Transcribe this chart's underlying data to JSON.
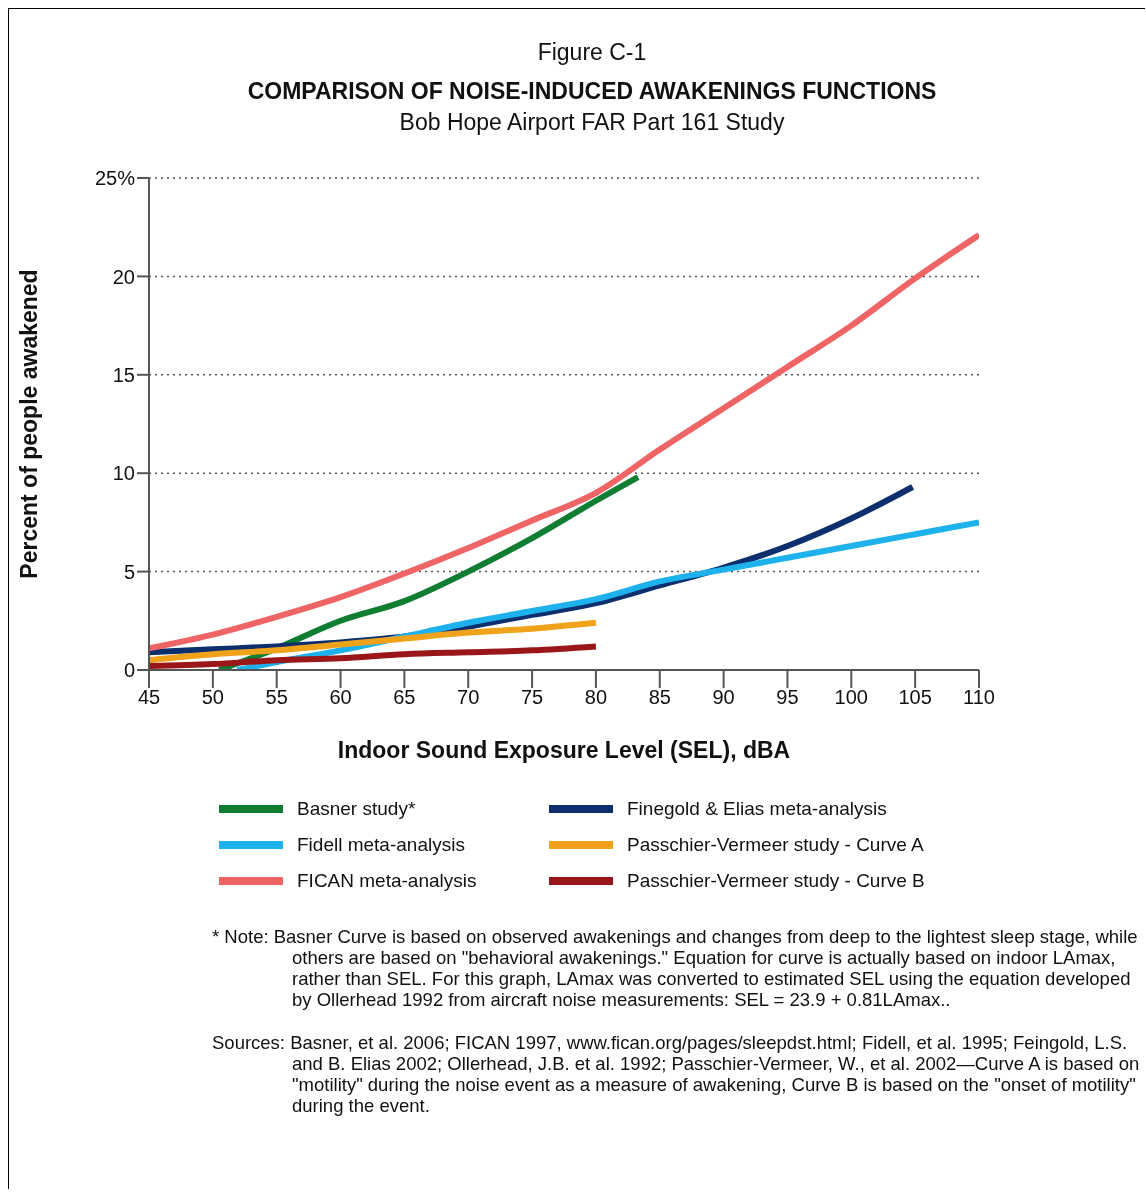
{
  "chart_data": {
    "type": "line",
    "title": "COMPARISON OF NOISE-INDUCED AWAKENINGS FUNCTIONS",
    "subtitle": "Bob Hope Airport FAR Part 161 Study",
    "xlabel": "Indoor Sound Exposure Level (SEL), dBA",
    "ylabel": "Percent of people awakened",
    "xlim": [
      45,
      110
    ],
    "xticks": [
      45,
      50,
      55,
      60,
      65,
      70,
      75,
      80,
      85,
      90,
      95,
      100,
      105,
      110
    ],
    "ylim": [
      0,
      25
    ],
    "yticks": [
      0,
      5,
      10,
      15,
      20,
      {
        "value": 25,
        "label": "25%"
      }
    ],
    "grid": "y",
    "legend": "bottom",
    "marker": "none",
    "line_style": "solid",
    "series": [
      {
        "name": "Basner study*",
        "color": "#0f7d32",
        "x": [
          50.5,
          55,
          60,
          65,
          70,
          75,
          80,
          83.3
        ],
        "values": [
          0,
          1.1,
          2.5,
          3.5,
          5.0,
          6.7,
          8.6,
          9.8
        ]
      },
      {
        "name": "Finegold & Elias meta-analysis",
        "color": "#0d2f6e",
        "x": [
          45,
          50,
          55,
          60,
          65,
          70,
          75,
          80,
          85,
          90,
          95,
          100,
          104.8
        ],
        "values": [
          0.9,
          1.05,
          1.2,
          1.4,
          1.7,
          2.2,
          2.8,
          3.4,
          4.3,
          5.2,
          6.3,
          7.7,
          9.3
        ]
      },
      {
        "name": "Fidell meta-analysis",
        "color": "#1eb2ec",
        "x": [
          51.9,
          55,
          60,
          65,
          70,
          75,
          80,
          85,
          90,
          95,
          100,
          105,
          110
        ],
        "values": [
          0,
          0.4,
          1.0,
          1.7,
          2.4,
          3.0,
          3.6,
          4.5,
          5.1,
          5.7,
          6.3,
          6.9,
          7.5
        ]
      },
      {
        "name": "Passchier-Vermeer study - Curve A",
        "color": "#f0a31a",
        "x": [
          45,
          50,
          55,
          60,
          65,
          70,
          75,
          80
        ],
        "values": [
          0.5,
          0.8,
          1.0,
          1.3,
          1.6,
          1.9,
          2.1,
          2.4
        ]
      },
      {
        "name": "FICAN meta-analysis",
        "color": "#ef6464",
        "x": [
          45,
          50,
          55,
          60,
          65,
          70,
          75,
          80,
          85,
          90,
          95,
          100,
          105,
          110
        ],
        "values": [
          1.1,
          1.8,
          2.7,
          3.7,
          4.9,
          6.2,
          7.6,
          9.0,
          11.2,
          13.3,
          15.4,
          17.5,
          19.9,
          22.1
        ]
      },
      {
        "name": "Passchier-Vermeer study - Curve B",
        "color": "#9a1618",
        "x": [
          45,
          50,
          55,
          60,
          65,
          70,
          75,
          80
        ],
        "values": [
          0.2,
          0.3,
          0.5,
          0.6,
          0.8,
          0.9,
          1.0,
          1.2
        ]
      }
    ],
    "annotations": [
      "Figure C-1",
      "* Note: Basner Curve is based on observed awakenings and changes from deep to the lightest sleep stage, while others are based on \"behavioral awakenings.\"  Equation for curve is actually based on indoor LAmax, rather than SEL.  For this graph, LAmax was converted to estimated SEL using the equation developed by Ollerhead 1992 from aircraft noise measurements: SEL = 23.9 + 0.81LAmax..",
      "Sources:  Basner, et al. 2006; FICAN 1997, www.fican.org/pages/sleepdst.html; Fidell, et al. 1995; Feingold, L.S. and B. Elias 2002; Ollerhead, J.B. et al. 1992; Passchier-Vermeer, W., et al. 2002—Curve A is based on \"motility\" during the noise event as a measure of awakening, Curve B is based on the \"onset of motility\" during the event."
    ]
  }
}
